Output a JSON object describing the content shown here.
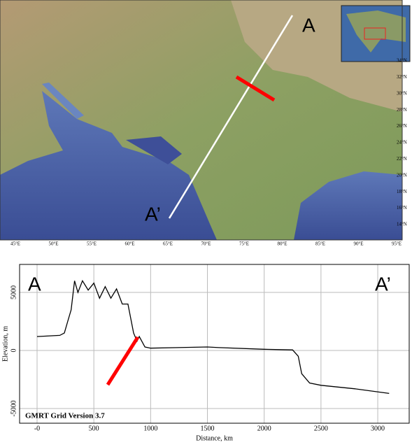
{
  "map": {
    "label_a": "A",
    "label_a_prime": "A’",
    "lon_labels": [
      "45°E",
      "50°E",
      "55°E",
      "60°E",
      "65°E",
      "70°E",
      "75°E",
      "80°E",
      "85°E",
      "90°E",
      "95°E"
    ],
    "lat_labels": [
      "34°N",
      "32°N",
      "30°N",
      "28°N",
      "26°N",
      "24°N",
      "22°N",
      "20°N",
      "18°N",
      "16°N",
      "14°N"
    ]
  },
  "chart_data": {
    "type": "line",
    "annotation_left": "A",
    "annotation_right": "A’",
    "credit": "GMRT Grid Version 3.7",
    "x_label": "Distance, km",
    "y_label": "Elevation, m",
    "x": [
      0,
      200,
      240,
      270,
      300,
      330,
      360,
      400,
      450,
      500,
      550,
      600,
      650,
      700,
      750,
      800,
      850,
      880,
      900,
      950,
      1000,
      1500,
      1600,
      2000,
      2250,
      2300,
      2330,
      2400,
      2500,
      2800,
      3100
    ],
    "series": [
      {
        "name": "Elevation",
        "color": "#000000",
        "values": [
          1200,
          1300,
          1500,
          2500,
          3500,
          6000,
          5000,
          6000,
          5200,
          5800,
          4500,
          5500,
          4500,
          5300,
          4000,
          4000,
          1500,
          800,
          1200,
          300,
          200,
          300,
          250,
          100,
          50,
          -500,
          -2000,
          -2800,
          -3000,
          -3300,
          -3700
        ]
      }
    ],
    "xlim": [
      -154,
      3277
    ],
    "ylim": [
      -6265,
      7410
    ],
    "xticks": [
      {
        "value": 0,
        "label": "-0"
      },
      500,
      1000,
      1500,
      2000,
      2500,
      3000
    ],
    "yticks": [
      -5000,
      0,
      5000
    ],
    "grid": true
  }
}
